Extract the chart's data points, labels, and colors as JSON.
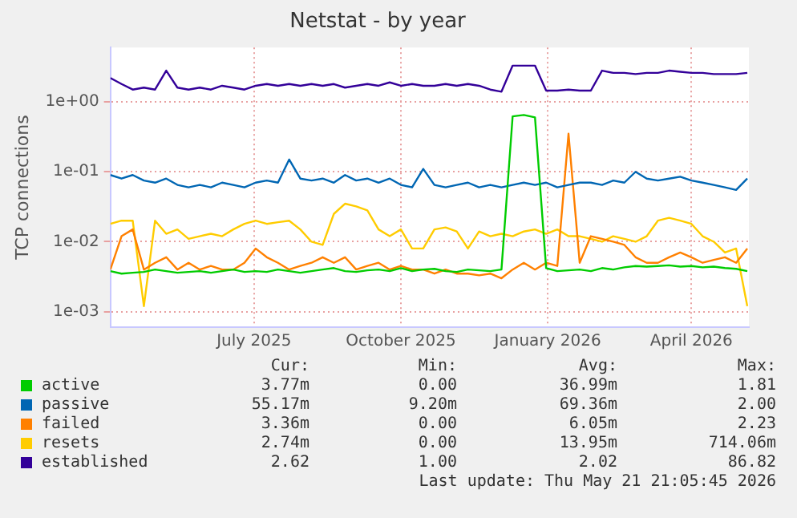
{
  "chart_data": {
    "type": "line",
    "title": "Netstat - by year",
    "ylabel": "TCP connections",
    "log": true,
    "grid": true,
    "legend": "bottom",
    "marker": "none",
    "line_style": "solid",
    "x": [
      "2025-04-16",
      "2025-04-23",
      "2025-04-30",
      "2025-05-07",
      "2025-05-14",
      "2025-05-21",
      "2025-05-28",
      "2025-06-04",
      "2025-06-11",
      "2025-06-18",
      "2025-06-25",
      "2025-07-02",
      "2025-07-09",
      "2025-07-16",
      "2025-07-23",
      "2025-07-30",
      "2025-08-06",
      "2025-08-13",
      "2025-08-20",
      "2025-08-27",
      "2025-09-03",
      "2025-09-10",
      "2025-09-17",
      "2025-09-24",
      "2025-10-01",
      "2025-10-08",
      "2025-10-15",
      "2025-10-22",
      "2025-10-29",
      "2025-11-05",
      "2025-11-12",
      "2025-11-19",
      "2025-11-26",
      "2025-12-03",
      "2025-12-10",
      "2025-12-17",
      "2025-12-24",
      "2025-12-31",
      "2026-01-07",
      "2026-01-14",
      "2026-01-21",
      "2026-01-28",
      "2026-02-04",
      "2026-02-11",
      "2026-02-18",
      "2026-02-25",
      "2026-03-04",
      "2026-03-11",
      "2026-03-18",
      "2026-03-25",
      "2026-04-01",
      "2026-04-08",
      "2026-04-15",
      "2026-04-22",
      "2026-04-29",
      "2026-05-06",
      "2026-05-13",
      "2026-05-20"
    ],
    "xlim": [
      "2025-04-16",
      "2026-05-21"
    ],
    "xticks": [
      {
        "value": "2025-07-15",
        "label": "July 2025"
      },
      {
        "value": "2025-10-15",
        "label": "October 2025"
      },
      {
        "value": "2026-01-15",
        "label": "January 2026"
      },
      {
        "value": "2026-04-15",
        "label": "April 2026"
      }
    ],
    "ylim": [
      0.0006,
      6
    ],
    "yticks": [
      {
        "value": 0.001,
        "label": "1e-03"
      },
      {
        "value": 0.01,
        "label": "1e-02"
      },
      {
        "value": 0.1,
        "label": "1e-01"
      },
      {
        "value": 1,
        "label": "1e+00"
      }
    ],
    "series": [
      {
        "name": "active",
        "color": "#00cc00",
        "values": [
          0.0038,
          0.0035,
          0.0036,
          0.0037,
          0.004,
          0.0038,
          0.0036,
          0.0037,
          0.0038,
          0.0036,
          0.0038,
          0.004,
          0.0037,
          0.0038,
          0.0037,
          0.004,
          0.0038,
          0.0036,
          0.0038,
          0.004,
          0.0042,
          0.0038,
          0.0037,
          0.0039,
          0.004,
          0.0038,
          0.0042,
          0.0038,
          0.004,
          0.0041,
          0.0038,
          0.0037,
          0.004,
          0.0039,
          0.0038,
          0.004,
          0.62,
          0.65,
          0.6,
          0.0042,
          0.0038,
          0.0039,
          0.004,
          0.0038,
          0.0042,
          0.004,
          0.0043,
          0.0045,
          0.0044,
          0.0045,
          0.0046,
          0.0044,
          0.0045,
          0.0043,
          0.0044,
          0.0042,
          0.0041,
          0.0038
        ]
      },
      {
        "name": "passive",
        "color": "#0066b3",
        "values": [
          0.09,
          0.08,
          0.09,
          0.075,
          0.07,
          0.08,
          0.065,
          0.06,
          0.065,
          0.06,
          0.07,
          0.065,
          0.06,
          0.07,
          0.075,
          0.07,
          0.15,
          0.08,
          0.075,
          0.08,
          0.07,
          0.09,
          0.075,
          0.08,
          0.07,
          0.08,
          0.065,
          0.06,
          0.11,
          0.065,
          0.06,
          0.065,
          0.07,
          0.06,
          0.065,
          0.06,
          0.065,
          0.07,
          0.065,
          0.07,
          0.06,
          0.065,
          0.07,
          0.07,
          0.065,
          0.075,
          0.07,
          0.1,
          0.08,
          0.075,
          0.08,
          0.085,
          0.075,
          0.07,
          0.065,
          0.06,
          0.055,
          0.08
        ]
      },
      {
        "name": "failed",
        "color": "#ff8000",
        "values": [
          0.004,
          0.012,
          0.015,
          0.004,
          0.005,
          0.006,
          0.004,
          0.005,
          0.004,
          0.0045,
          0.004,
          0.004,
          0.005,
          0.008,
          0.006,
          0.005,
          0.004,
          0.0045,
          0.005,
          0.006,
          0.005,
          0.006,
          0.004,
          0.0045,
          0.005,
          0.004,
          0.0045,
          0.004,
          0.004,
          0.0035,
          0.004,
          0.0035,
          0.0035,
          0.0033,
          0.0035,
          0.003,
          0.004,
          0.005,
          0.004,
          0.005,
          0.0045,
          0.35,
          0.005,
          0.012,
          0.011,
          0.01,
          0.009,
          0.006,
          0.005,
          0.005,
          0.006,
          0.007,
          0.006,
          0.005,
          0.0055,
          0.006,
          0.005,
          0.008
        ]
      },
      {
        "name": "resets",
        "color": "#ffcc00",
        "values": [
          0.018,
          0.02,
          0.02,
          0.0012,
          0.02,
          0.013,
          0.015,
          0.011,
          0.012,
          0.013,
          0.012,
          0.015,
          0.018,
          0.02,
          0.018,
          0.019,
          0.02,
          0.015,
          0.01,
          0.009,
          0.025,
          0.035,
          0.032,
          0.028,
          0.015,
          0.012,
          0.015,
          0.008,
          0.008,
          0.015,
          0.016,
          0.014,
          0.008,
          0.014,
          0.012,
          0.013,
          0.012,
          0.014,
          0.015,
          0.013,
          0.015,
          0.012,
          0.012,
          0.011,
          0.01,
          0.012,
          0.011,
          0.01,
          0.012,
          0.02,
          0.022,
          0.02,
          0.018,
          0.012,
          0.01,
          0.007,
          0.008,
          0.0012
        ]
      },
      {
        "name": "established",
        "color": "#330099",
        "values": [
          2.2,
          1.8,
          1.5,
          1.6,
          1.5,
          2.8,
          1.6,
          1.5,
          1.6,
          1.5,
          1.7,
          1.6,
          1.5,
          1.7,
          1.8,
          1.7,
          1.8,
          1.7,
          1.8,
          1.7,
          1.8,
          1.6,
          1.7,
          1.8,
          1.7,
          1.9,
          1.7,
          1.8,
          1.7,
          1.7,
          1.8,
          1.7,
          1.8,
          1.7,
          1.5,
          1.4,
          3.3,
          3.3,
          3.3,
          1.45,
          1.45,
          1.5,
          1.45,
          1.45,
          2.8,
          2.6,
          2.6,
          2.5,
          2.6,
          2.6,
          2.8,
          2.7,
          2.6,
          2.6,
          2.5,
          2.5,
          2.5,
          2.6
        ]
      }
    ],
    "annotations": [
      "Cur:",
      "Min:",
      "Avg:",
      "Max:",
      "3.77m",
      "0.00",
      "36.99m",
      "1.81",
      "55.17m",
      "9.20m",
      "69.36m",
      "2.00",
      "3.36m",
      "0.00",
      "6.05m",
      "2.23",
      "2.74m",
      "0.00",
      "13.95m",
      "714.06m",
      "2.62",
      "1.00",
      "2.02",
      "86.82",
      "Last update: Thu May 21 21:05:45 2026"
    ]
  }
}
